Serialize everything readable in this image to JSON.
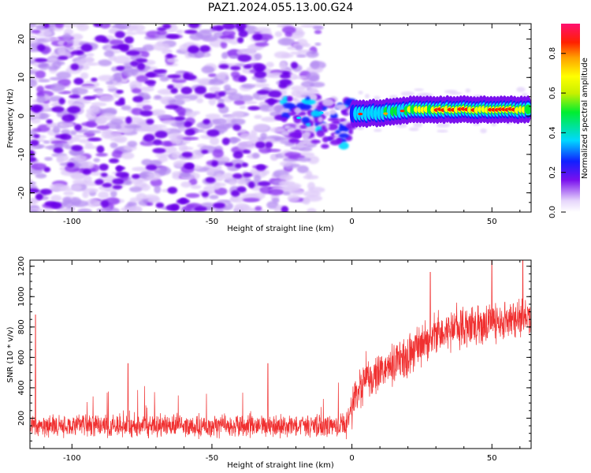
{
  "title": "PAZ1.2024.055.13.00.G24",
  "chart_data": [
    {
      "type": "heatmap",
      "xlabel": "Height of straight line (km)",
      "ylabel": "Frequency (Hz)",
      "xlim": [
        -115,
        64
      ],
      "ylim": [
        -25,
        24
      ],
      "xticks": [
        -100,
        -50,
        0,
        50
      ],
      "yticks": [
        -20,
        -10,
        0,
        10,
        20
      ],
      "colorbar": {
        "label": "Normalized spectral amplitude",
        "range": [
          0,
          0.95
        ],
        "ticks": [
          0.0,
          0.2,
          0.4,
          0.6,
          0.8
        ]
      },
      "noise_region": {
        "x": [
          -115,
          -20
        ],
        "y": [
          -25,
          24
        ],
        "level": 0.1
      },
      "transition_region": {
        "x": [
          -25,
          0
        ],
        "y": [
          -8,
          5
        ],
        "level": 0.25
      },
      "signal_band": {
        "x": [
          0,
          64
        ],
        "frequency": 1.5,
        "profile": [
          {
            "x": 0,
            "frequency": 0.5,
            "amplitude": 0.45
          },
          {
            "x": 10,
            "frequency": 0.8,
            "amplitude": 0.55
          },
          {
            "x": 20,
            "frequency": 1.5,
            "amplitude": 0.7
          },
          {
            "x": 30,
            "frequency": 1.7,
            "amplitude": 0.8
          },
          {
            "x": 40,
            "frequency": 1.7,
            "amplitude": 0.9
          },
          {
            "x": 50,
            "frequency": 1.6,
            "amplitude": 0.85
          },
          {
            "x": 64,
            "frequency": 1.6,
            "amplitude": 0.75
          }
        ]
      }
    },
    {
      "type": "line",
      "xlabel": "Height of straight line (km)",
      "ylabel": "SNR (10 * v/v)",
      "xlim": [
        -115,
        64
      ],
      "ylim": [
        0,
        1240
      ],
      "xticks": [
        -100,
        -50,
        0,
        50
      ],
      "yticks": [
        200,
        400,
        600,
        800,
        1000,
        1200
      ],
      "color": "#f03030",
      "series": [
        {
          "trend": [
            {
              "x": -115,
              "y": 150
            },
            {
              "x": -2,
              "y": 150
            },
            {
              "x": 2,
              "y": 380
            },
            {
              "x": 10,
              "y": 500
            },
            {
              "x": 20,
              "y": 620
            },
            {
              "x": 30,
              "y": 750
            },
            {
              "x": 40,
              "y": 800
            },
            {
              "x": 50,
              "y": 830
            },
            {
              "x": 64,
              "y": 850
            }
          ],
          "spikes": [
            {
              "x": -113,
              "y": 880
            },
            {
              "x": -80,
              "y": 560
            },
            {
              "x": -30,
              "y": 560
            },
            {
              "x": 28,
              "y": 1160
            },
            {
              "x": 50,
              "y": 1240
            },
            {
              "x": 61,
              "y": 1240
            }
          ]
        }
      ]
    }
  ]
}
